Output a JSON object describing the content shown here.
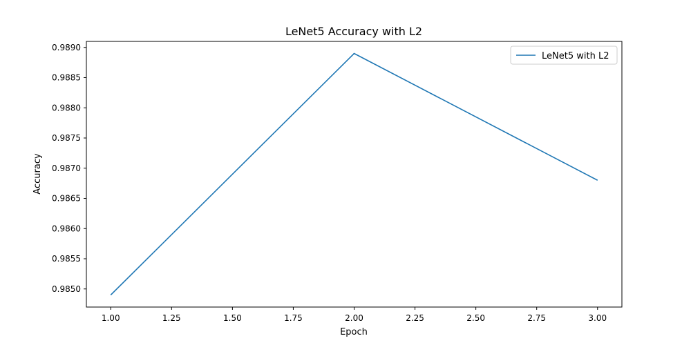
{
  "chart_data": {
    "type": "line",
    "title": "LeNet5 Accuracy with L2",
    "xlabel": "Epoch",
    "ylabel": "Accuracy",
    "xlim": [
      0.9,
      3.1
    ],
    "ylim": [
      0.9847,
      0.9891
    ],
    "x_ticks": [
      1.0,
      1.25,
      1.5,
      1.75,
      2.0,
      2.25,
      2.5,
      2.75,
      3.0
    ],
    "x_tick_labels": [
      "1.00",
      "1.25",
      "1.50",
      "1.75",
      "2.00",
      "2.25",
      "2.50",
      "2.75",
      "3.00"
    ],
    "y_ticks": [
      0.985,
      0.9855,
      0.986,
      0.9865,
      0.987,
      0.9875,
      0.988,
      0.9885,
      0.989
    ],
    "y_tick_labels": [
      "0.9850",
      "0.9855",
      "0.9860",
      "0.9865",
      "0.9870",
      "0.9875",
      "0.9880",
      "0.9885",
      "0.9890"
    ],
    "grid": false,
    "legend_position": "top-right",
    "series": [
      {
        "name": "LeNet5 with L2",
        "color": "#1f77b4",
        "x": [
          1,
          2,
          3
        ],
        "y": [
          0.9849,
          0.9889,
          0.9868
        ]
      }
    ]
  }
}
